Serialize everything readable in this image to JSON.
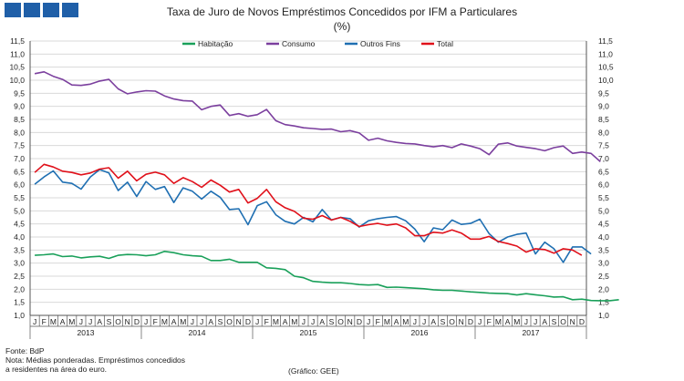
{
  "colors": {
    "logo": "#1f5fa8",
    "habitacao": "#1aa05a",
    "consumo": "#7b3f9e",
    "outros": "#1f6fb2",
    "total": "#e0101a",
    "grid": "#d9d9d9",
    "axis": "#555555"
  },
  "title": {
    "line1": "Taxa de Juro de Novos Empréstimos Concedidos por IFM a Particulares",
    "line2": "(%)"
  },
  "notes": {
    "source": "Fonte: BdP",
    "note1": "Nota: Médias ponderadas.  Empréstimos  concedidos",
    "note2": "a residentes na área do euro.",
    "credit": "(Gráfico: GEE)"
  },
  "chart_data": {
    "type": "line",
    "title": "Taxa de Juro de Novos Empréstimos Concedidos por IFM a Particulares",
    "subtitle": "(%)",
    "ylim": [
      1.0,
      11.5
    ],
    "yticks": [
      "1,0",
      "1,5",
      "2,0",
      "2,5",
      "3,0",
      "3,5",
      "4,0",
      "4,5",
      "5,0",
      "5,5",
      "6,0",
      "6,5",
      "7,0",
      "7,5",
      "8,0",
      "8,5",
      "9,0",
      "9,5",
      "10,0",
      "10,5",
      "11,0",
      "11,5"
    ],
    "grid": "horizontal",
    "legend": "top-center",
    "months": [
      "J",
      "F",
      "M",
      "A",
      "M",
      "J",
      "J",
      "A",
      "S",
      "O",
      "N",
      "D"
    ],
    "years": [
      "2013",
      "2014",
      "2015",
      "2016",
      "2017"
    ],
    "series": [
      {
        "name": "Habitação",
        "color_key": "habitacao",
        "values": [
          3.3,
          3.32,
          3.35,
          3.25,
          3.27,
          3.2,
          3.24,
          3.26,
          3.18,
          3.3,
          3.33,
          3.32,
          3.28,
          3.32,
          3.45,
          3.4,
          3.32,
          3.28,
          3.26,
          3.1,
          3.1,
          3.15,
          3.03,
          3.03,
          3.03,
          2.82,
          2.8,
          2.75,
          2.5,
          2.44,
          2.3,
          2.27,
          2.25,
          2.25,
          2.22,
          2.18,
          2.16,
          2.18,
          2.07,
          2.08,
          2.06,
          2.04,
          2.02,
          1.98,
          1.96,
          1.96,
          1.93,
          1.9,
          1.88,
          1.85,
          1.84,
          1.83,
          1.78,
          1.83,
          1.79,
          1.75,
          1.7,
          1.71,
          1.6,
          1.62,
          1.57,
          1.56,
          1.56,
          1.6
        ]
      },
      {
        "name": "Consumo",
        "color_key": "consumo",
        "values": [
          10.25,
          10.32,
          10.15,
          10.03,
          9.82,
          9.8,
          9.85,
          9.97,
          10.03,
          9.67,
          9.48,
          9.55,
          9.6,
          9.58,
          9.4,
          9.28,
          9.22,
          9.2,
          8.87,
          9.0,
          9.05,
          8.65,
          8.72,
          8.62,
          8.68,
          8.88,
          8.45,
          8.3,
          8.25,
          8.18,
          8.15,
          8.12,
          8.13,
          8.03,
          8.07,
          7.98,
          7.7,
          7.78,
          7.68,
          7.62,
          7.58,
          7.56,
          7.5,
          7.45,
          7.5,
          7.42,
          7.56,
          7.48,
          7.38,
          7.15,
          7.55,
          7.6,
          7.48,
          7.43,
          7.38,
          7.3,
          7.42,
          7.48,
          7.2,
          7.25,
          7.2,
          6.88
        ]
      },
      {
        "name": "Outros Fins",
        "color_key": "outros",
        "values": [
          6.02,
          6.3,
          6.53,
          6.1,
          6.05,
          5.83,
          6.3,
          6.58,
          6.45,
          5.78,
          6.1,
          5.55,
          6.12,
          5.82,
          5.93,
          5.32,
          5.88,
          5.75,
          5.45,
          5.75,
          5.52,
          5.05,
          5.08,
          4.47,
          5.2,
          5.35,
          4.85,
          4.6,
          4.5,
          4.75,
          4.58,
          5.05,
          4.65,
          4.75,
          4.7,
          4.38,
          4.62,
          4.7,
          4.75,
          4.78,
          4.62,
          4.3,
          3.82,
          4.35,
          4.28,
          4.65,
          4.48,
          4.52,
          4.68,
          4.13,
          3.8,
          4.0,
          4.1,
          4.15,
          3.35,
          3.8,
          3.55,
          3.03,
          3.62,
          3.62,
          3.35
        ]
      },
      {
        "name": "Total",
        "color_key": "total",
        "values": [
          6.47,
          6.78,
          6.68,
          6.52,
          6.47,
          6.38,
          6.45,
          6.6,
          6.65,
          6.25,
          6.52,
          6.15,
          6.4,
          6.48,
          6.38,
          6.05,
          6.27,
          6.12,
          5.9,
          6.18,
          5.98,
          5.72,
          5.82,
          5.3,
          5.48,
          5.82,
          5.35,
          5.12,
          4.98,
          4.72,
          4.68,
          4.82,
          4.65,
          4.75,
          4.6,
          4.4,
          4.47,
          4.52,
          4.45,
          4.5,
          4.35,
          4.05,
          4.05,
          4.18,
          4.15,
          4.27,
          4.15,
          3.92,
          3.92,
          4.02,
          3.83,
          3.75,
          3.65,
          3.42,
          3.55,
          3.52,
          3.38,
          3.55,
          3.5,
          3.3
        ]
      }
    ]
  }
}
